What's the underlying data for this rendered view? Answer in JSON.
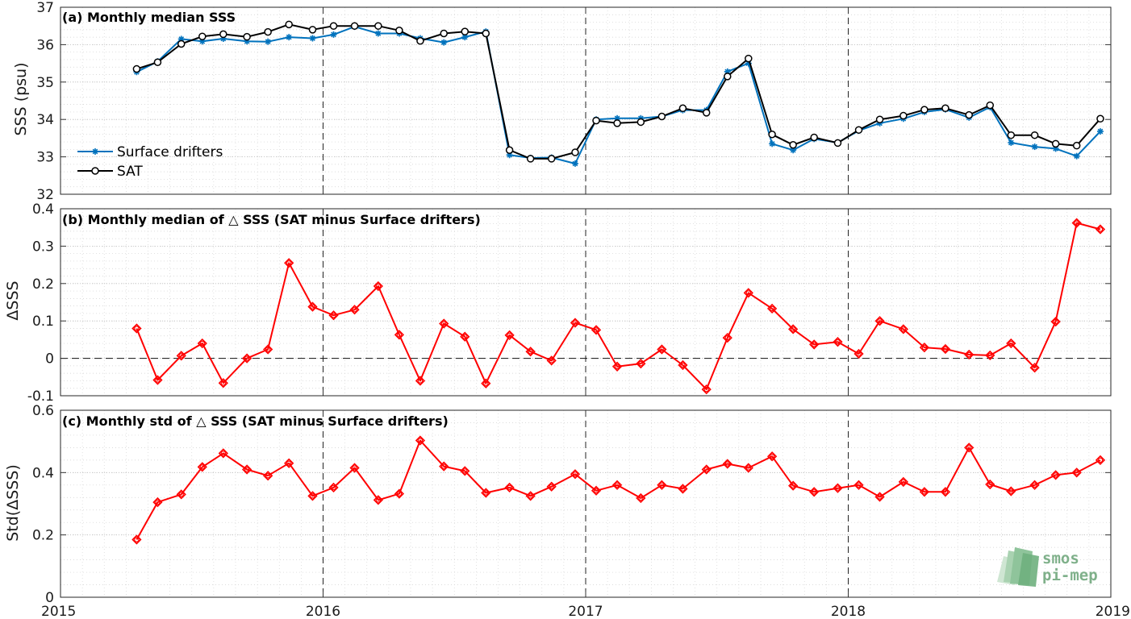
{
  "figure": {
    "x_ticks": [
      "2015",
      "2016",
      "2017",
      "2018",
      "2019"
    ],
    "x_range": [
      2015.0,
      2019.0
    ],
    "year_boundaries": [
      2016,
      2017,
      2018
    ],
    "logo": {
      "line1": "smos",
      "line2": "pi-mep"
    }
  },
  "chart_data": [
    {
      "type": "line",
      "title": "(a) Monthly median SSS",
      "ylabel": "SSS (psu)",
      "ylim": [
        32,
        37
      ],
      "y_ticks": [
        "32",
        "33",
        "34",
        "35",
        "36",
        "37"
      ],
      "grid": true,
      "legend": "bottom-left",
      "x": [
        2015.29,
        2015.37,
        2015.46,
        2015.54,
        2015.62,
        2015.71,
        2015.79,
        2015.87,
        2015.96,
        2016.04,
        2016.12,
        2016.21,
        2016.29,
        2016.37,
        2016.46,
        2016.54,
        2016.62,
        2016.71,
        2016.79,
        2016.87,
        2016.96,
        2017.04,
        2017.12,
        2017.21,
        2017.29,
        2017.37,
        2017.46,
        2017.54,
        2017.62,
        2017.71,
        2017.79,
        2017.87,
        2017.96,
        2018.04,
        2018.12,
        2018.21,
        2018.29,
        2018.37,
        2018.46,
        2018.54,
        2018.62,
        2018.71,
        2018.79,
        2018.87,
        2018.96
      ],
      "series": [
        {
          "name": "Surface drifters",
          "color": "#0072bd",
          "marker": "asterisk",
          "values": [
            35.27,
            35.55,
            36.15,
            36.09,
            36.16,
            36.09,
            36.08,
            36.2,
            36.17,
            36.27,
            36.48,
            36.3,
            36.3,
            36.17,
            36.06,
            36.2,
            36.35,
            33.05,
            32.97,
            32.98,
            32.82,
            34.0,
            34.03,
            34.03,
            34.08,
            34.25,
            34.25,
            35.28,
            35.5,
            33.35,
            33.18,
            33.48,
            33.38,
            33.7,
            33.9,
            34.02,
            34.2,
            34.27,
            34.05,
            34.33,
            33.38,
            33.27,
            33.22,
            33.02,
            33.68
          ]
        },
        {
          "name": "SAT",
          "color": "#000000",
          "marker": "circle",
          "values": [
            35.35,
            35.53,
            36.02,
            36.22,
            36.28,
            36.21,
            36.34,
            36.54,
            36.4,
            36.5,
            36.5,
            36.5,
            36.38,
            36.1,
            36.3,
            36.35,
            36.3,
            33.18,
            32.95,
            32.95,
            33.12,
            33.97,
            33.9,
            33.93,
            34.08,
            34.3,
            34.18,
            35.15,
            35.63,
            33.6,
            33.32,
            33.52,
            33.37,
            33.72,
            34.0,
            34.1,
            34.26,
            34.3,
            34.12,
            34.38,
            33.58,
            33.58,
            33.35,
            33.3,
            34.02
          ]
        }
      ]
    },
    {
      "type": "line",
      "title": "(b) Monthly median of △ SSS (SAT minus Surface drifters)",
      "ylabel": "ΔSSS",
      "ylim": [
        -0.1,
        0.4
      ],
      "y_ticks": [
        "-0.1",
        "0",
        "0.1",
        "0.2",
        "0.3",
        "0.4"
      ],
      "grid": true,
      "reference_line": 0,
      "x": [
        2015.29,
        2015.37,
        2015.46,
        2015.54,
        2015.62,
        2015.71,
        2015.79,
        2015.87,
        2015.96,
        2016.04,
        2016.12,
        2016.21,
        2016.29,
        2016.37,
        2016.46,
        2016.54,
        2016.62,
        2016.71,
        2016.79,
        2016.87,
        2016.96,
        2017.04,
        2017.12,
        2017.21,
        2017.29,
        2017.37,
        2017.46,
        2017.54,
        2017.62,
        2017.71,
        2017.79,
        2017.87,
        2017.96,
        2018.04,
        2018.12,
        2018.21,
        2018.29,
        2018.37,
        2018.46,
        2018.54,
        2018.62,
        2018.71,
        2018.79,
        2018.87,
        2018.96
      ],
      "series": [
        {
          "name": "",
          "color": "#ff0000",
          "marker": "diamond",
          "values": [
            0.08,
            -0.058,
            0.007,
            0.04,
            -0.066,
            0.0,
            0.024,
            0.255,
            0.138,
            0.115,
            0.13,
            0.193,
            0.063,
            -0.06,
            0.093,
            0.058,
            -0.067,
            0.062,
            0.018,
            -0.006,
            0.095,
            0.076,
            -0.022,
            -0.014,
            0.024,
            -0.018,
            -0.083,
            0.055,
            0.175,
            0.133,
            0.078,
            0.037,
            0.044,
            0.012,
            0.1,
            0.078,
            0.029,
            0.025,
            0.01,
            0.008,
            0.04,
            -0.025,
            0.098,
            0.362,
            0.345
          ]
        }
      ]
    },
    {
      "type": "line",
      "title": "(c) Monthly std of △ SSS (SAT minus Surface drifters)",
      "ylabel": "Std(ΔSSS)",
      "ylim": [
        0,
        0.6
      ],
      "y_ticks": [
        "0",
        "0.2",
        "0.4",
        "0.6"
      ],
      "grid": true,
      "x": [
        2015.29,
        2015.37,
        2015.46,
        2015.54,
        2015.62,
        2015.71,
        2015.79,
        2015.87,
        2015.96,
        2016.04,
        2016.12,
        2016.21,
        2016.29,
        2016.37,
        2016.46,
        2016.54,
        2016.62,
        2016.71,
        2016.79,
        2016.87,
        2016.96,
        2017.04,
        2017.12,
        2017.21,
        2017.29,
        2017.37,
        2017.46,
        2017.54,
        2017.62,
        2017.71,
        2017.79,
        2017.87,
        2017.96,
        2018.04,
        2018.12,
        2018.21,
        2018.29,
        2018.37,
        2018.46,
        2018.54,
        2018.62,
        2018.71,
        2018.79,
        2018.87,
        2018.96
      ],
      "series": [
        {
          "name": "",
          "color": "#ff0000",
          "marker": "diamond",
          "values": [
            0.185,
            0.305,
            0.33,
            0.418,
            0.462,
            0.41,
            0.39,
            0.43,
            0.325,
            0.352,
            0.415,
            0.312,
            0.332,
            0.503,
            0.42,
            0.405,
            0.335,
            0.352,
            0.325,
            0.355,
            0.395,
            0.342,
            0.36,
            0.318,
            0.36,
            0.348,
            0.41,
            0.428,
            0.415,
            0.452,
            0.358,
            0.338,
            0.35,
            0.36,
            0.322,
            0.37,
            0.338,
            0.338,
            0.48,
            0.362,
            0.34,
            0.36,
            0.392,
            0.4,
            0.44
          ]
        }
      ]
    }
  ]
}
